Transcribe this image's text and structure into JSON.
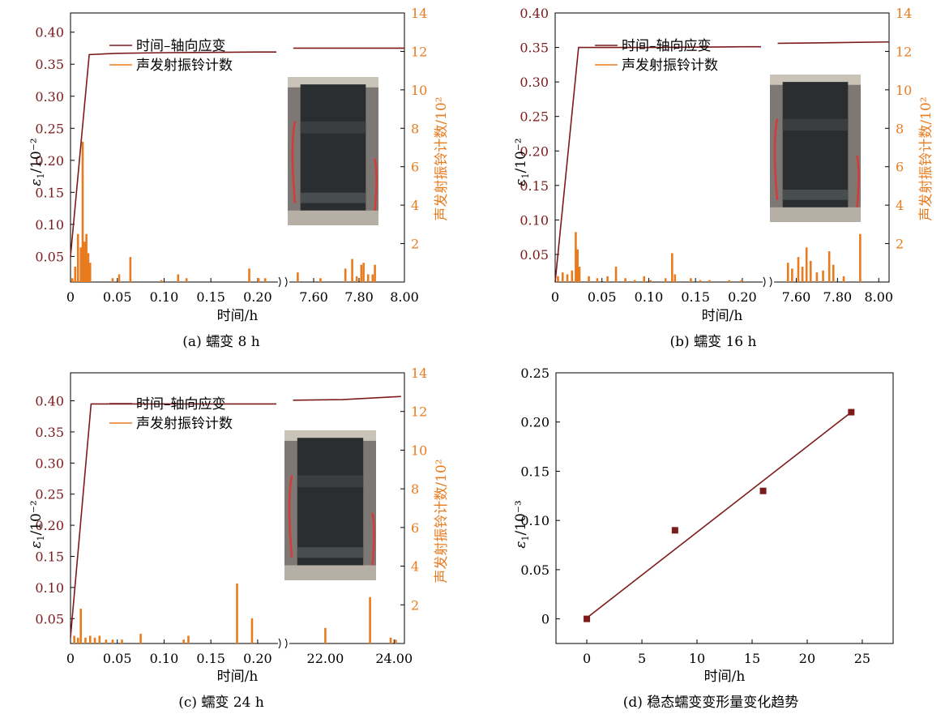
{
  "colors": {
    "strain": "#7B1B1B",
    "acoustic": "#E87B1E",
    "axis": "#000000",
    "photo_dark": "#2b2e30",
    "photo_bg": "#7d7873"
  },
  "chart_data": [
    {
      "type": "line",
      "id": "a",
      "caption": "(a) 蠕变 8 h",
      "xlabel": "时间/h",
      "ylabel_left": "ε1/10⁻²",
      "ylabel_left_main": "ε",
      "ylabel_left_sub": "1",
      "ylabel_left_rest": "/10⁻²",
      "ylabel_right": "声发射振铃计数/10²",
      "ylim_left": [
        0.01,
        0.43
      ],
      "ylim_right": [
        0,
        14
      ],
      "left_ticks": [
        "0.05",
        "0.10",
        "0.15",
        "0.20",
        "0.25",
        "0.30",
        "0.35",
        "0.40"
      ],
      "left_tick_values": [
        0.05,
        0.1,
        0.15,
        0.2,
        0.25,
        0.3,
        0.35,
        0.4
      ],
      "right_ticks": [
        "2",
        "4",
        "6",
        "8",
        "10",
        "12",
        "14"
      ],
      "right_tick_values": [
        2,
        4,
        6,
        8,
        10,
        12,
        14
      ],
      "x_ticks": [
        "0",
        "0.05",
        "0.10",
        "0.15",
        "0.20",
        "7.60",
        "7.80",
        "8.00"
      ],
      "x_tick_values": [
        0,
        0.05,
        0.1,
        0.15,
        0.2,
        7.6,
        7.8,
        8.0
      ],
      "x_segments": [
        [
          0,
          0.22
        ],
        [
          7.5,
          8.0
        ]
      ],
      "legend": [
        "时间–轴向应变",
        "声发射振铃计数"
      ],
      "strain_segments": [
        [
          [
            0,
            0.05
          ],
          [
            0.02,
            0.365
          ],
          [
            0.05,
            0.367
          ],
          [
            0.1,
            0.368
          ],
          [
            0.2,
            0.369
          ],
          [
            0.22,
            0.369
          ]
        ],
        [
          [
            7.51,
            0.375
          ],
          [
            8.0,
            0.375
          ]
        ]
      ],
      "acoustic": [
        [
          0.002,
          0.2
        ],
        [
          0.005,
          0.8
        ],
        [
          0.008,
          2.5
        ],
        [
          0.011,
          1.8
        ],
        [
          0.013,
          7.3
        ],
        [
          0.015,
          2.1
        ],
        [
          0.017,
          2.5
        ],
        [
          0.019,
          1.5
        ],
        [
          0.021,
          1.0
        ],
        [
          0.045,
          0.2
        ],
        [
          0.052,
          0.4
        ],
        [
          0.064,
          1.3
        ],
        [
          0.097,
          0.1
        ],
        [
          0.115,
          0.4
        ],
        [
          0.124,
          0.2
        ],
        [
          0.191,
          0.7
        ],
        [
          0.201,
          0.2
        ],
        [
          0.208,
          0.2
        ],
        [
          7.53,
          0.5
        ],
        [
          7.63,
          0.2
        ],
        [
          7.74,
          0.7
        ],
        [
          7.77,
          1.2
        ],
        [
          7.79,
          0.3
        ],
        [
          7.81,
          0.9
        ],
        [
          7.82,
          1.0
        ],
        [
          7.84,
          0.4
        ],
        [
          7.86,
          0.4
        ],
        [
          7.87,
          0.9
        ]
      ],
      "photo": "rock-specimen-photo"
    },
    {
      "type": "line",
      "id": "b",
      "caption": "(b) 蠕变 16 h",
      "xlabel": "时间/h",
      "ylabel_left": "ε1/10⁻²",
      "ylabel_left_main": "ε",
      "ylabel_left_sub": "1",
      "ylabel_left_rest": "/10⁻²",
      "ylabel_right": "声发射振铃计数/10²",
      "ylim_left": [
        0.01,
        0.4
      ],
      "ylim_right": [
        0,
        14
      ],
      "left_ticks": [
        "0.05",
        "0.10",
        "0.15",
        "0.20",
        "0.25",
        "0.30",
        "0.35",
        "0.40"
      ],
      "left_tick_values": [
        0.05,
        0.1,
        0.15,
        0.2,
        0.25,
        0.3,
        0.35,
        0.4
      ],
      "right_ticks": [
        "2",
        "4",
        "6",
        "8",
        "10",
        "12",
        "14"
      ],
      "right_tick_values": [
        2,
        4,
        6,
        8,
        10,
        12,
        14
      ],
      "x_ticks": [
        "0",
        "0.05",
        "0.10",
        "0.15",
        "0.20",
        "7.60",
        "7.80",
        "8.00"
      ],
      "x_tick_values": [
        0,
        0.05,
        0.1,
        0.15,
        0.2,
        7.6,
        7.8,
        8.0
      ],
      "x_segments": [
        [
          0,
          0.22
        ],
        [
          7.5,
          8.05
        ]
      ],
      "legend": [
        "时间–轴向应变",
        "声发射振铃计数"
      ],
      "strain_segments": [
        [
          [
            0,
            0.01
          ],
          [
            0.025,
            0.35
          ],
          [
            0.05,
            0.35
          ],
          [
            0.1,
            0.35
          ],
          [
            0.2,
            0.351
          ],
          [
            0.22,
            0.351
          ]
        ],
        [
          [
            7.51,
            0.356
          ],
          [
            7.8,
            0.357
          ],
          [
            8.05,
            0.358
          ]
        ]
      ],
      "acoustic": [
        [
          0.003,
          0.3
        ],
        [
          0.008,
          0.5
        ],
        [
          0.013,
          0.4
        ],
        [
          0.018,
          0.6
        ],
        [
          0.022,
          2.6
        ],
        [
          0.024,
          1.7
        ],
        [
          0.026,
          0.8
        ],
        [
          0.036,
          0.3
        ],
        [
          0.045,
          0.2
        ],
        [
          0.056,
          0.3
        ],
        [
          0.065,
          0.8
        ],
        [
          0.075,
          0.2
        ],
        [
          0.085,
          0.1
        ],
        [
          0.095,
          0.3
        ],
        [
          0.102,
          0.1
        ],
        [
          0.118,
          0.2
        ],
        [
          0.125,
          1.5
        ],
        [
          0.128,
          0.4
        ],
        [
          0.145,
          0.2
        ],
        [
          0.155,
          0.1
        ],
        [
          0.165,
          0.1
        ],
        [
          0.186,
          0.1
        ],
        [
          0.199,
          0.1
        ],
        [
          7.56,
          1.0
        ],
        [
          7.58,
          0.7
        ],
        [
          7.61,
          1.3
        ],
        [
          7.63,
          0.8
        ],
        [
          7.65,
          1.8
        ],
        [
          7.67,
          1.1
        ],
        [
          7.7,
          0.5
        ],
        [
          7.73,
          0.6
        ],
        [
          7.76,
          1.6
        ],
        [
          7.78,
          0.9
        ],
        [
          7.83,
          0.3
        ],
        [
          7.91,
          2.5
        ]
      ],
      "photo": "rock-specimen-photo"
    },
    {
      "type": "line",
      "id": "c",
      "caption": "(c) 蠕变 24 h",
      "xlabel": "时间/h",
      "ylabel_left": "ε1/10⁻²",
      "ylabel_left_main": "ε",
      "ylabel_left_sub": "1",
      "ylabel_left_rest": "/10⁻²",
      "ylabel_right": "声发射振铃计数/10²",
      "ylim_left": [
        0.01,
        0.445
      ],
      "ylim_right": [
        0,
        14
      ],
      "left_ticks": [
        "0.05",
        "0.10",
        "0.15",
        "0.20",
        "0.25",
        "0.30",
        "0.35",
        "0.40"
      ],
      "left_tick_values": [
        0.05,
        0.1,
        0.15,
        0.2,
        0.25,
        0.3,
        0.35,
        0.4
      ],
      "right_ticks": [
        "2",
        "4",
        "6",
        "8",
        "10",
        "12",
        "14"
      ],
      "right_tick_values": [
        2,
        4,
        6,
        8,
        10,
        12,
        14
      ],
      "x_ticks": [
        "0",
        "0.05",
        "0.10",
        "0.15",
        "0.20",
        "22.00",
        "24.00"
      ],
      "x_tick_values": [
        0,
        0.05,
        0.1,
        0.15,
        0.2,
        22.0,
        24.0
      ],
      "x_segments": [
        [
          0,
          0.22
        ],
        [
          21.0,
          24.3
        ]
      ],
      "legend": [
        "时间–轴向应变",
        "声发射振铃计数"
      ],
      "strain_segments": [
        [
          [
            0,
            0.02
          ],
          [
            0.022,
            0.395
          ],
          [
            0.05,
            0.395
          ],
          [
            0.1,
            0.395
          ],
          [
            0.2,
            0.395
          ],
          [
            0.22,
            0.395
          ]
        ],
        [
          [
            21.06,
            0.401
          ],
          [
            22.5,
            0.402
          ],
          [
            24.2,
            0.407
          ]
        ]
      ],
      "acoustic": [
        [
          0.004,
          0.4
        ],
        [
          0.008,
          0.3
        ],
        [
          0.011,
          1.8
        ],
        [
          0.016,
          0.3
        ],
        [
          0.021,
          0.4
        ],
        [
          0.026,
          0.3
        ],
        [
          0.031,
          0.4
        ],
        [
          0.038,
          0.2
        ],
        [
          0.045,
          0.2
        ],
        [
          0.055,
          0.2
        ],
        [
          0.075,
          0.5
        ],
        [
          0.121,
          0.2
        ],
        [
          0.126,
          0.4
        ],
        [
          0.178,
          3.1
        ],
        [
          0.194,
          1.3
        ],
        [
          22.0,
          0.8
        ],
        [
          23.3,
          2.4
        ],
        [
          23.9,
          0.3
        ],
        [
          24.05,
          0.2
        ]
      ],
      "photo": "rock-specimen-photo"
    },
    {
      "type": "scatter",
      "id": "d",
      "caption": "(d) 稳态蠕变变形量变化趋势",
      "xlabel": "时间/h",
      "ylabel_left": "ε1/10⁻³",
      "ylabel_left_main": "ε",
      "ylabel_left_sub": "1",
      "ylabel_left_rest": "/10⁻³",
      "xlim": [
        -2.8,
        27.8
      ],
      "ylim": [
        -0.025,
        0.25
      ],
      "x_ticks": [
        "0",
        "5",
        "10",
        "15",
        "20",
        "25"
      ],
      "x_tick_values": [
        0,
        5,
        10,
        15,
        20,
        25
      ],
      "y_ticks": [
        "0",
        "0.05",
        "0.10",
        "0.15",
        "0.20",
        "0.25"
      ],
      "y_tick_values": [
        0,
        0.05,
        0.1,
        0.15,
        0.2,
        0.25
      ],
      "points": [
        [
          0,
          0.0
        ],
        [
          8,
          0.09
        ],
        [
          16,
          0.13
        ],
        [
          24,
          0.21
        ]
      ],
      "fit_line": [
        [
          0,
          0.001
        ],
        [
          24,
          0.21
        ]
      ]
    }
  ]
}
